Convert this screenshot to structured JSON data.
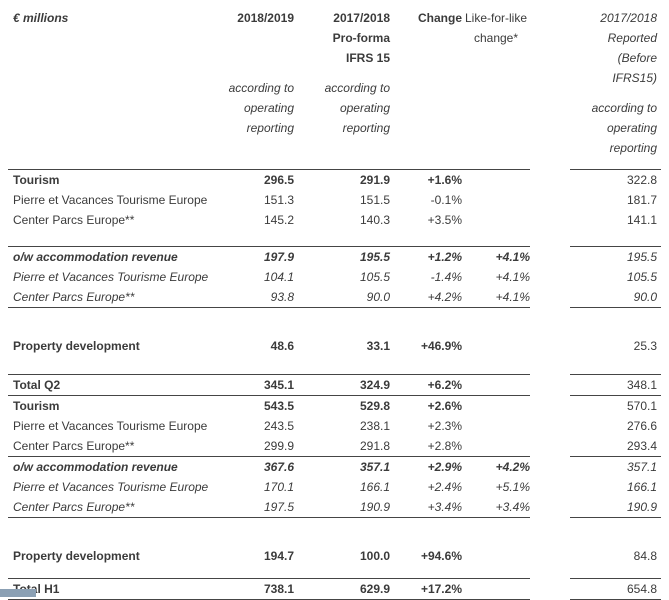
{
  "meta": {
    "background": "#ffffff",
    "text_color": "#3b3b3b",
    "rule_color": "#454545",
    "fragment_color": "#8ba0b4"
  },
  "header": {
    "unit_label": "€ millions",
    "columns": {
      "current": {
        "title_lines": [
          "2018/2019"
        ],
        "sub_lines": [
          "according to",
          "operating",
          "reporting"
        ]
      },
      "proforma": {
        "title_lines": [
          "2017/2018",
          "Pro-forma",
          "IFRS 15"
        ],
        "sub_lines": [
          "according to",
          "operating",
          "reporting"
        ]
      },
      "change": {
        "title_lines": [
          "Change"
        ]
      },
      "like_for_like": {
        "title_lines": [
          "Like-for-like",
          "change*"
        ]
      },
      "reported": {
        "title_lines": [
          "2017/2018",
          "Reported",
          "(Before IFRS15)"
        ],
        "sub_lines": [
          "according to",
          "operating",
          "reporting"
        ]
      }
    }
  },
  "body": [
    {
      "space_before": 0,
      "rule_top": false,
      "rule_bottom": false,
      "rows": [
        {
          "style": "section",
          "label": "Tourism",
          "v1": "296.5",
          "v2": "291.9",
          "change": "+1.6%",
          "lfl": "",
          "reported": "322.8"
        },
        {
          "style": "sub",
          "label": "Pierre et Vacances Tourisme Europe",
          "v1": "151.3",
          "v2": "151.5",
          "change": "-0.1%",
          "lfl": "",
          "reported": "181.7"
        },
        {
          "style": "sub",
          "label": "Center Parcs Europe**",
          "v1": "145.2",
          "v2": "140.3",
          "change": "+3.5%",
          "lfl": "",
          "reported": "141.1"
        }
      ]
    },
    {
      "space_before": 16,
      "rule_top": true,
      "rule_bottom": true,
      "rows": [
        {
          "style": "olw",
          "label": "o/w accommodation revenue",
          "v1": "197.9",
          "v2": "195.5",
          "change": "+1.2%",
          "lfl": "+4.1%",
          "reported": "195.5"
        },
        {
          "style": "olw-sub",
          "label": "Pierre et Vacances Tourisme Europe",
          "v1": "104.1",
          "v2": "105.5",
          "change": "-1.4%",
          "lfl": "+4.1%",
          "reported": "105.5"
        },
        {
          "style": "olw-sub",
          "label": "Center Parcs Europe**",
          "v1": "93.8",
          "v2": "90.0",
          "change": "+4.2%",
          "lfl": "+4.1%",
          "reported": "90.0"
        }
      ]
    },
    {
      "space_before": 28,
      "rule_top": false,
      "rule_bottom": false,
      "rows": [
        {
          "style": "section",
          "label": "Property development",
          "v1": "48.6",
          "v2": "33.1",
          "change": "+46.9%",
          "lfl": "",
          "reported": "25.3"
        }
      ]
    },
    {
      "space_before": 18,
      "rule_top": true,
      "rule_bottom": true,
      "rows": [
        {
          "style": "section",
          "label": "Total Q2",
          "v1": "345.1",
          "v2": "324.9",
          "change": "+6.2%",
          "lfl": "",
          "reported": "348.1"
        }
      ]
    },
    {
      "space_before": 0,
      "rule_top": false,
      "rule_bottom": false,
      "rows": [
        {
          "style": "section",
          "label": "Tourism",
          "v1": "543.5",
          "v2": "529.8",
          "change": "+2.6%",
          "lfl": "",
          "reported": "570.1"
        },
        {
          "style": "sub",
          "label": "Pierre et Vacances Tourisme Europe",
          "v1": "243.5",
          "v2": "238.1",
          "change": "+2.3%",
          "lfl": "",
          "reported": "276.6"
        },
        {
          "style": "sub",
          "label": "Center Parcs Europe**",
          "v1": "299.9",
          "v2": "291.8",
          "change": "+2.8%",
          "lfl": "",
          "reported": "293.4"
        }
      ]
    },
    {
      "space_before": 0,
      "rule_top": true,
      "rule_bottom": true,
      "rows": [
        {
          "style": "olw",
          "label": "o/w accommodation revenue",
          "v1": "367.6",
          "v2": "357.1",
          "change": "+2.9%",
          "lfl": "+4.2%",
          "reported": "357.1"
        },
        {
          "style": "olw-sub",
          "label": "Pierre et Vacances Tourisme Europe",
          "v1": "170.1",
          "v2": "166.1",
          "change": "+2.4%",
          "lfl": "+5.1%",
          "reported": "166.1"
        },
        {
          "style": "olw-sub",
          "label": "Center Parcs Europe**",
          "v1": "197.5",
          "v2": "190.9",
          "change": "+3.4%",
          "lfl": "+3.4%",
          "reported": "190.9"
        }
      ]
    },
    {
      "space_before": 28,
      "rule_top": false,
      "rule_bottom": false,
      "rows": [
        {
          "style": "section",
          "label": "Property development",
          "v1": "194.7",
          "v2": "100.0",
          "change": "+94.6%",
          "lfl": "",
          "reported": "84.8"
        }
      ]
    },
    {
      "space_before": 12,
      "rule_top": true,
      "rule_bottom": true,
      "rows": [
        {
          "style": "section",
          "label": "Total H1",
          "v1": "738.1",
          "v2": "629.9",
          "change": "+17.2%",
          "lfl": "",
          "reported": "654.8"
        }
      ]
    }
  ]
}
